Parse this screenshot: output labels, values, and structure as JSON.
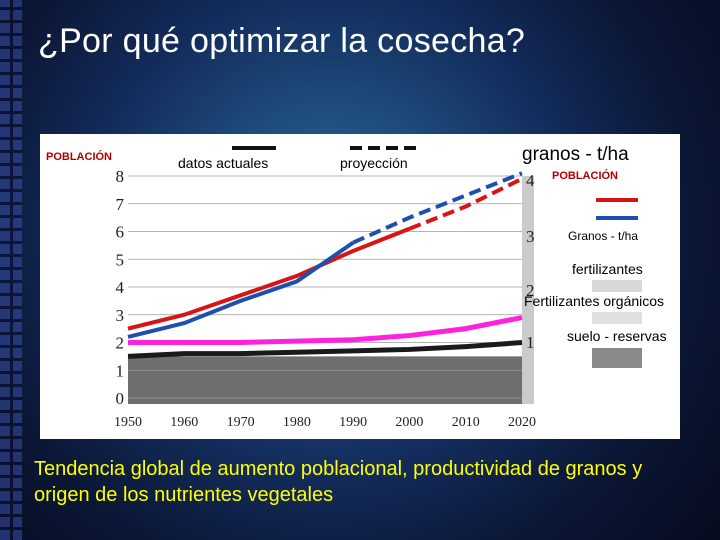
{
  "slide": {
    "title": "¿Por qué optimizar la cosecha?",
    "caption": "Tendencia global de aumento poblacional, productividad de granos y origen de  los nutrientes vegetales"
  },
  "chart_data": {
    "type": "line",
    "x": [
      1950,
      1960,
      1970,
      1980,
      1990,
      2000,
      2010,
      2020
    ],
    "x_ticks": [
      "1950",
      "1960",
      "1970",
      "1980",
      "1990",
      "2000",
      "2010",
      "2020"
    ],
    "ylim": [
      0,
      8
    ],
    "y_ticks": [
      "0",
      "1",
      "2",
      "3",
      "4",
      "5",
      "6",
      "7",
      "8"
    ],
    "y2_ticks": [
      "1",
      "2",
      "3",
      "4"
    ],
    "grid": true,
    "left_axis_label": "POBLACIÓN",
    "right_axis_label": "granos - t/ha",
    "line_style_legend": {
      "solid": "datos actuales",
      "dashed": "proyección"
    },
    "series": [
      {
        "name": "POBLACIÓN",
        "color": "#d81414",
        "x": [
          1950,
          1960,
          1970,
          1980,
          1990,
          2000,
          2010,
          2020
        ],
        "values": [
          2.5,
          3.0,
          3.7,
          4.4,
          5.3,
          6.1,
          6.9,
          7.9
        ],
        "projection_from": 2000
      },
      {
        "name": "Granos - t/ha",
        "color": "#1f4fae",
        "x": [
          1950,
          1960,
          1970,
          1980,
          1990,
          2000,
          2010,
          2020
        ],
        "values": [
          2.2,
          2.7,
          3.5,
          4.2,
          5.6,
          6.5,
          7.3,
          8.1
        ],
        "projection_from": 1990
      },
      {
        "name": "fertilizantes",
        "color": "#ff22dd",
        "x": [
          1950,
          1960,
          1970,
          1980,
          1990,
          2000,
          2010,
          2020
        ],
        "values": [
          2.0,
          2.0,
          2.0,
          2.05,
          2.1,
          2.25,
          2.5,
          2.9
        ]
      },
      {
        "name": "Fertilizantes orgánicos",
        "color": "#1a1a1a",
        "x": [
          1950,
          1960,
          1970,
          1980,
          1990,
          2000,
          2010,
          2020
        ],
        "values": [
          1.5,
          1.6,
          1.6,
          1.65,
          1.7,
          1.75,
          1.85,
          2.0
        ]
      }
    ],
    "legend": {
      "position": "right",
      "title": "POBLACIÓN",
      "entries": [
        "Granos - t/ha",
        "fertilizantes",
        "Fertilizantes orgánicos",
        "suelo - reservas"
      ]
    },
    "colors": {
      "population": "#d81414",
      "grain": "#1f4fae",
      "fert": "#ff22dd",
      "organic": "#1a1a1a",
      "soil": "#8a8a8a"
    }
  }
}
